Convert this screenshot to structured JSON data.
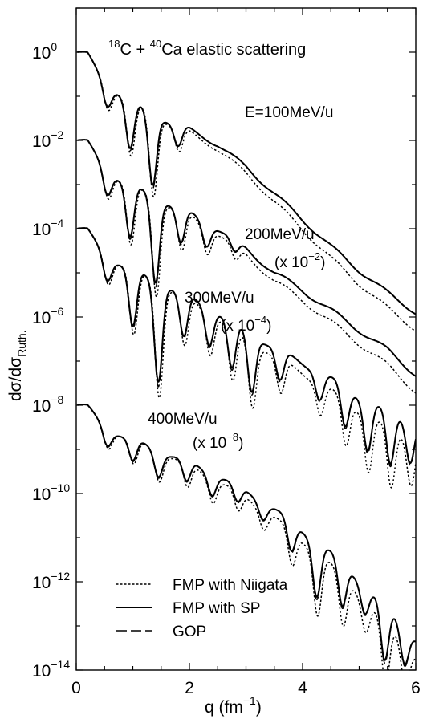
{
  "chart_data": {
    "type": "line",
    "title": {
      "pre_sup1": "18",
      "base1": "C + ",
      "pre_sup2": "40",
      "base2": "Ca elastic scattering"
    },
    "xlabel": {
      "base": "q (fm",
      "sup": "−1",
      "tail": ")"
    },
    "ylabel": {
      "base": "dσ/dσ",
      "sub": "Ruth."
    },
    "xlim": [
      0,
      6
    ],
    "ylim_log10": [
      -14,
      1
    ],
    "x_ticks": [
      "0",
      "2",
      "4",
      "6"
    ],
    "x_tick_values": [
      0,
      2,
      4,
      6
    ],
    "y_ticks": [
      {
        "exp": 0,
        "base": "10",
        "sup": "0"
      },
      {
        "exp": -2,
        "base": "10",
        "sup": "−2"
      },
      {
        "exp": -4,
        "base": "10",
        "sup": "−4"
      },
      {
        "exp": -6,
        "base": "10",
        "sup": "−6"
      },
      {
        "exp": -8,
        "base": "10",
        "sup": "−8"
      },
      {
        "exp": -10,
        "base": "10",
        "sup": "−10"
      },
      {
        "exp": -12,
        "base": "10",
        "sup": "−12"
      },
      {
        "exp": -14,
        "base": "10",
        "sup": "−14"
      }
    ],
    "annotations": [
      {
        "id": "ann-100",
        "base": "E=100MeV/u",
        "scale": ""
      },
      {
        "id": "ann-200",
        "base": "200MeV/u",
        "scale_base": "(x 10",
        "scale_sup": "−2",
        "scale_tail": ")"
      },
      {
        "id": "ann-300",
        "base": "300MeV/u",
        "scale_base": "(x 10",
        "scale_sup": "−4",
        "scale_tail": ")"
      },
      {
        "id": "ann-400",
        "base": "400MeV/u",
        "scale_base": "(x 10",
        "scale_sup": "−8",
        "scale_tail": ")"
      }
    ],
    "legend": {
      "placement": "bottom-left",
      "entries": [
        {
          "label": "FMP with Niigata",
          "style": "dotted"
        },
        {
          "label": "FMP with SP",
          "style": "solid"
        },
        {
          "label": "GOP",
          "style": "dashed"
        }
      ]
    },
    "curves": [
      {
        "energy_label": "E=100MeV/u",
        "x_start": 0.02,
        "baseline_log10": [
          [
            0.0,
            0.0
          ],
          [
            0.2,
            -0.05
          ],
          [
            0.5,
            -0.7
          ],
          [
            1.0,
            -1.15
          ],
          [
            1.5,
            -1.5
          ],
          [
            2.0,
            -1.75
          ],
          [
            2.5,
            -2.1
          ],
          [
            3.0,
            -2.6
          ],
          [
            3.5,
            -3.2
          ],
          [
            4.0,
            -3.8
          ],
          [
            4.5,
            -4.4
          ],
          [
            5.0,
            -4.95
          ],
          [
            5.5,
            -5.45
          ],
          [
            6.0,
            -5.9
          ]
        ],
        "minima": [
          0.55,
          0.95,
          1.35,
          1.8
        ],
        "minima_depth": [
          0.45,
          1.1,
          1.6,
          0.5
        ],
        "wiggle_amp": 0.05
      },
      {
        "energy_label": "200MeV/u",
        "x_start": 0.02,
        "baseline_log10": [
          [
            0.0,
            -2.0
          ],
          [
            0.2,
            -2.05
          ],
          [
            0.5,
            -2.65
          ],
          [
            1.0,
            -3.05
          ],
          [
            1.5,
            -3.35
          ],
          [
            2.0,
            -3.65
          ],
          [
            2.5,
            -4.0
          ],
          [
            3.0,
            -4.45
          ],
          [
            3.5,
            -5.0
          ],
          [
            4.0,
            -5.4
          ],
          [
            4.5,
            -5.85
          ],
          [
            5.0,
            -6.3
          ],
          [
            5.5,
            -6.75
          ],
          [
            6.0,
            -7.3
          ]
        ],
        "minima": [
          0.55,
          0.95,
          1.4,
          1.85,
          2.3,
          2.8
        ],
        "minima_depth": [
          0.5,
          1.2,
          1.9,
          0.8,
          0.5,
          0.3
        ],
        "wiggle_amp": 0.06
      },
      {
        "energy_label": "300MeV/u",
        "x_start": 0.02,
        "baseline_log10": [
          [
            0.0,
            -4.0
          ],
          [
            0.2,
            -4.05
          ],
          [
            0.5,
            -4.6
          ],
          [
            1.0,
            -4.95
          ],
          [
            1.5,
            -5.25
          ],
          [
            2.0,
            -5.55
          ],
          [
            2.5,
            -5.9
          ],
          [
            3.0,
            -6.3
          ],
          [
            3.5,
            -6.7
          ],
          [
            4.0,
            -7.05
          ],
          [
            4.5,
            -7.4
          ],
          [
            5.0,
            -7.8
          ],
          [
            5.5,
            -8.15
          ],
          [
            6.0,
            -8.4
          ]
        ],
        "minima": [
          0.55,
          1.0,
          1.45,
          1.9,
          2.35,
          2.75,
          3.1,
          3.6,
          4.3,
          4.75,
          5.15,
          5.55,
          5.9
        ],
        "minima_depth": [
          0.5,
          1.3,
          2.2,
          1.0,
          0.8,
          1.1,
          1.3,
          0.7,
          0.6,
          0.9,
          1.1,
          1.2,
          0.9
        ],
        "wiggle_amp": 0.06
      },
      {
        "energy_label": "400MeV/u",
        "x_start": 0.02,
        "baseline_log10": [
          [
            0.0,
            -8.0
          ],
          [
            0.2,
            -8.05
          ],
          [
            0.5,
            -8.5
          ],
          [
            1.0,
            -8.8
          ],
          [
            1.5,
            -9.05
          ],
          [
            2.0,
            -9.3
          ],
          [
            2.5,
            -9.6
          ],
          [
            3.0,
            -9.95
          ],
          [
            3.5,
            -10.35
          ],
          [
            4.0,
            -10.85
          ],
          [
            4.5,
            -11.35
          ],
          [
            5.0,
            -11.95
          ],
          [
            5.5,
            -12.6
          ],
          [
            6.0,
            -13.3
          ]
        ],
        "minima": [
          0.55,
          1.0,
          1.45,
          1.95,
          2.4,
          2.85,
          3.3,
          3.8,
          4.25,
          4.7,
          5.1,
          5.45,
          5.8
        ],
        "minima_depth": [
          0.35,
          0.5,
          0.55,
          0.5,
          0.45,
          0.4,
          0.35,
          0.7,
          1.2,
          1.0,
          0.6,
          1.3,
          0.8
        ],
        "wiggle_amp": 0.06
      }
    ]
  }
}
